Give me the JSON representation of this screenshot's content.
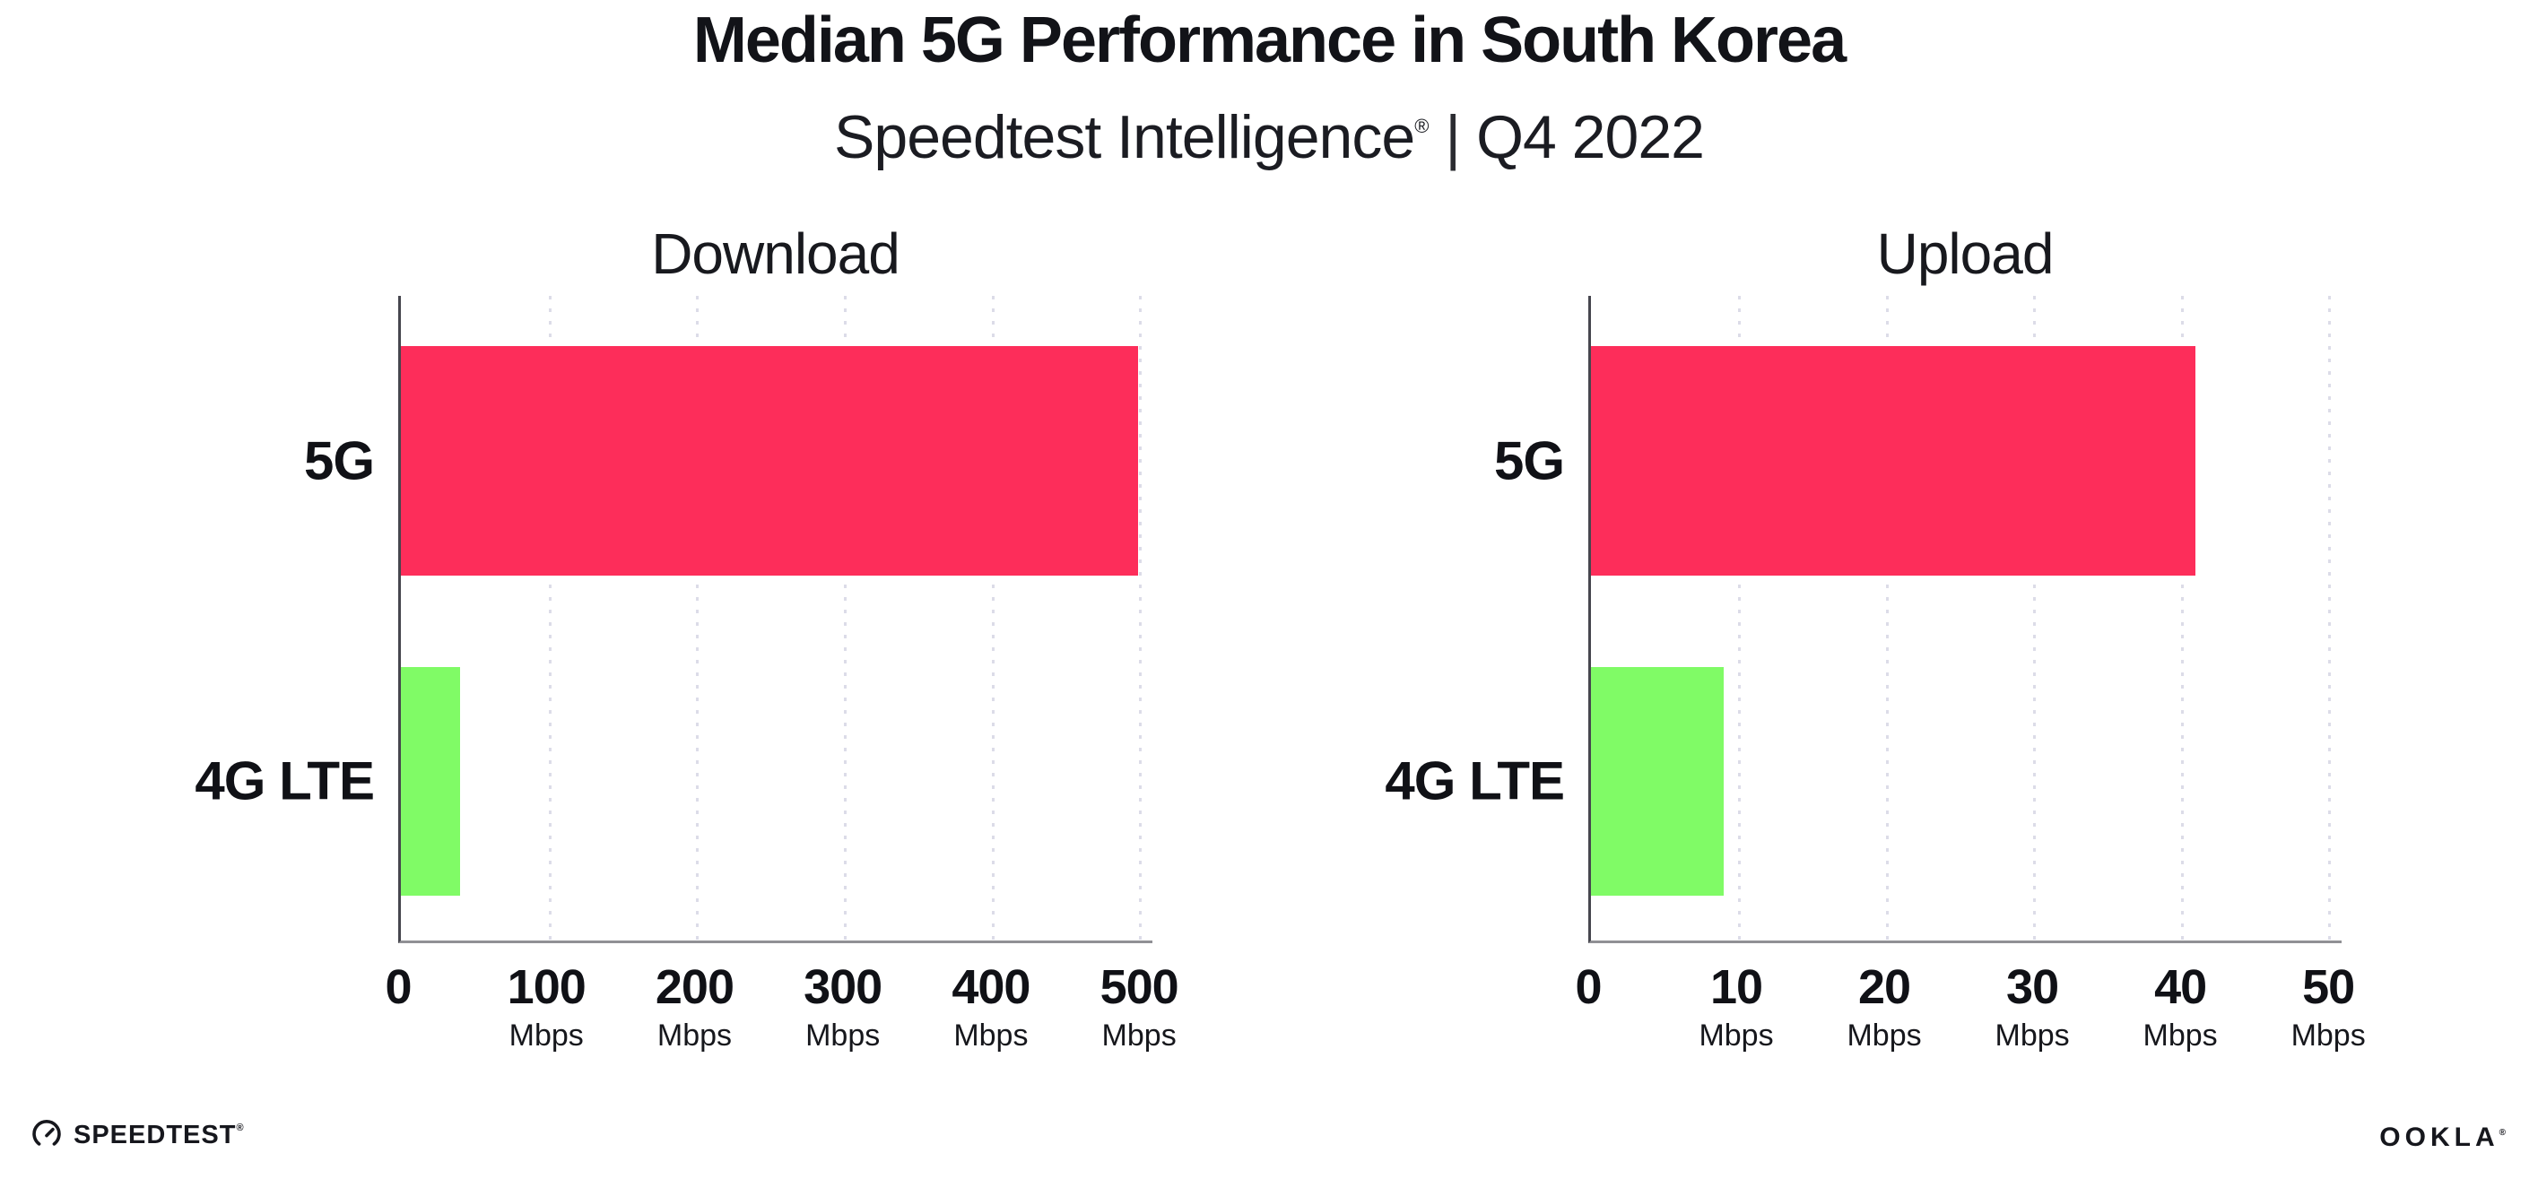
{
  "header": {
    "title": "Median 5G Performance in South Korea",
    "subtitle_brand": "Speedtest Intelligence",
    "subtitle_mark": "®",
    "subtitle_sep": "|",
    "subtitle_period": "Q4 2022"
  },
  "chart_data": [
    {
      "type": "bar",
      "orientation": "horizontal",
      "title": "Download",
      "categories": [
        "5G",
        "4G LTE"
      ],
      "values": [
        499,
        40
      ],
      "unit": "Mbps",
      "xticks": [
        0,
        100,
        200,
        300,
        400,
        500
      ],
      "xlim": [
        0,
        509
      ],
      "colors": [
        "#FD2D5A",
        "#80FB66"
      ],
      "grid": "dotted-vertical",
      "legend": "none"
    },
    {
      "type": "bar",
      "orientation": "horizontal",
      "title": "Upload",
      "categories": [
        "5G",
        "4G LTE"
      ],
      "values": [
        41,
        9
      ],
      "unit": "Mbps",
      "xticks": [
        0,
        10,
        20,
        30,
        40,
        50
      ],
      "xlim": [
        0,
        50.9
      ],
      "colors": [
        "#FD2D5A",
        "#80FB66"
      ],
      "grid": "dotted-vertical",
      "legend": "none"
    }
  ],
  "styles": {
    "accent_pink": "#FD2D5A",
    "accent_green": "#80FB66",
    "grid_color": "#dcdce8",
    "axis_color": "#909095",
    "spine_color": "#46464e",
    "text_color": "#121318",
    "background": "#ffffff"
  },
  "footer": {
    "speedtest_label": "SPEEDTEST",
    "speedtest_mark": "®",
    "speedtest_icon": "gauge-icon",
    "ookla_label": "OOKLA",
    "ookla_mark": "®"
  }
}
